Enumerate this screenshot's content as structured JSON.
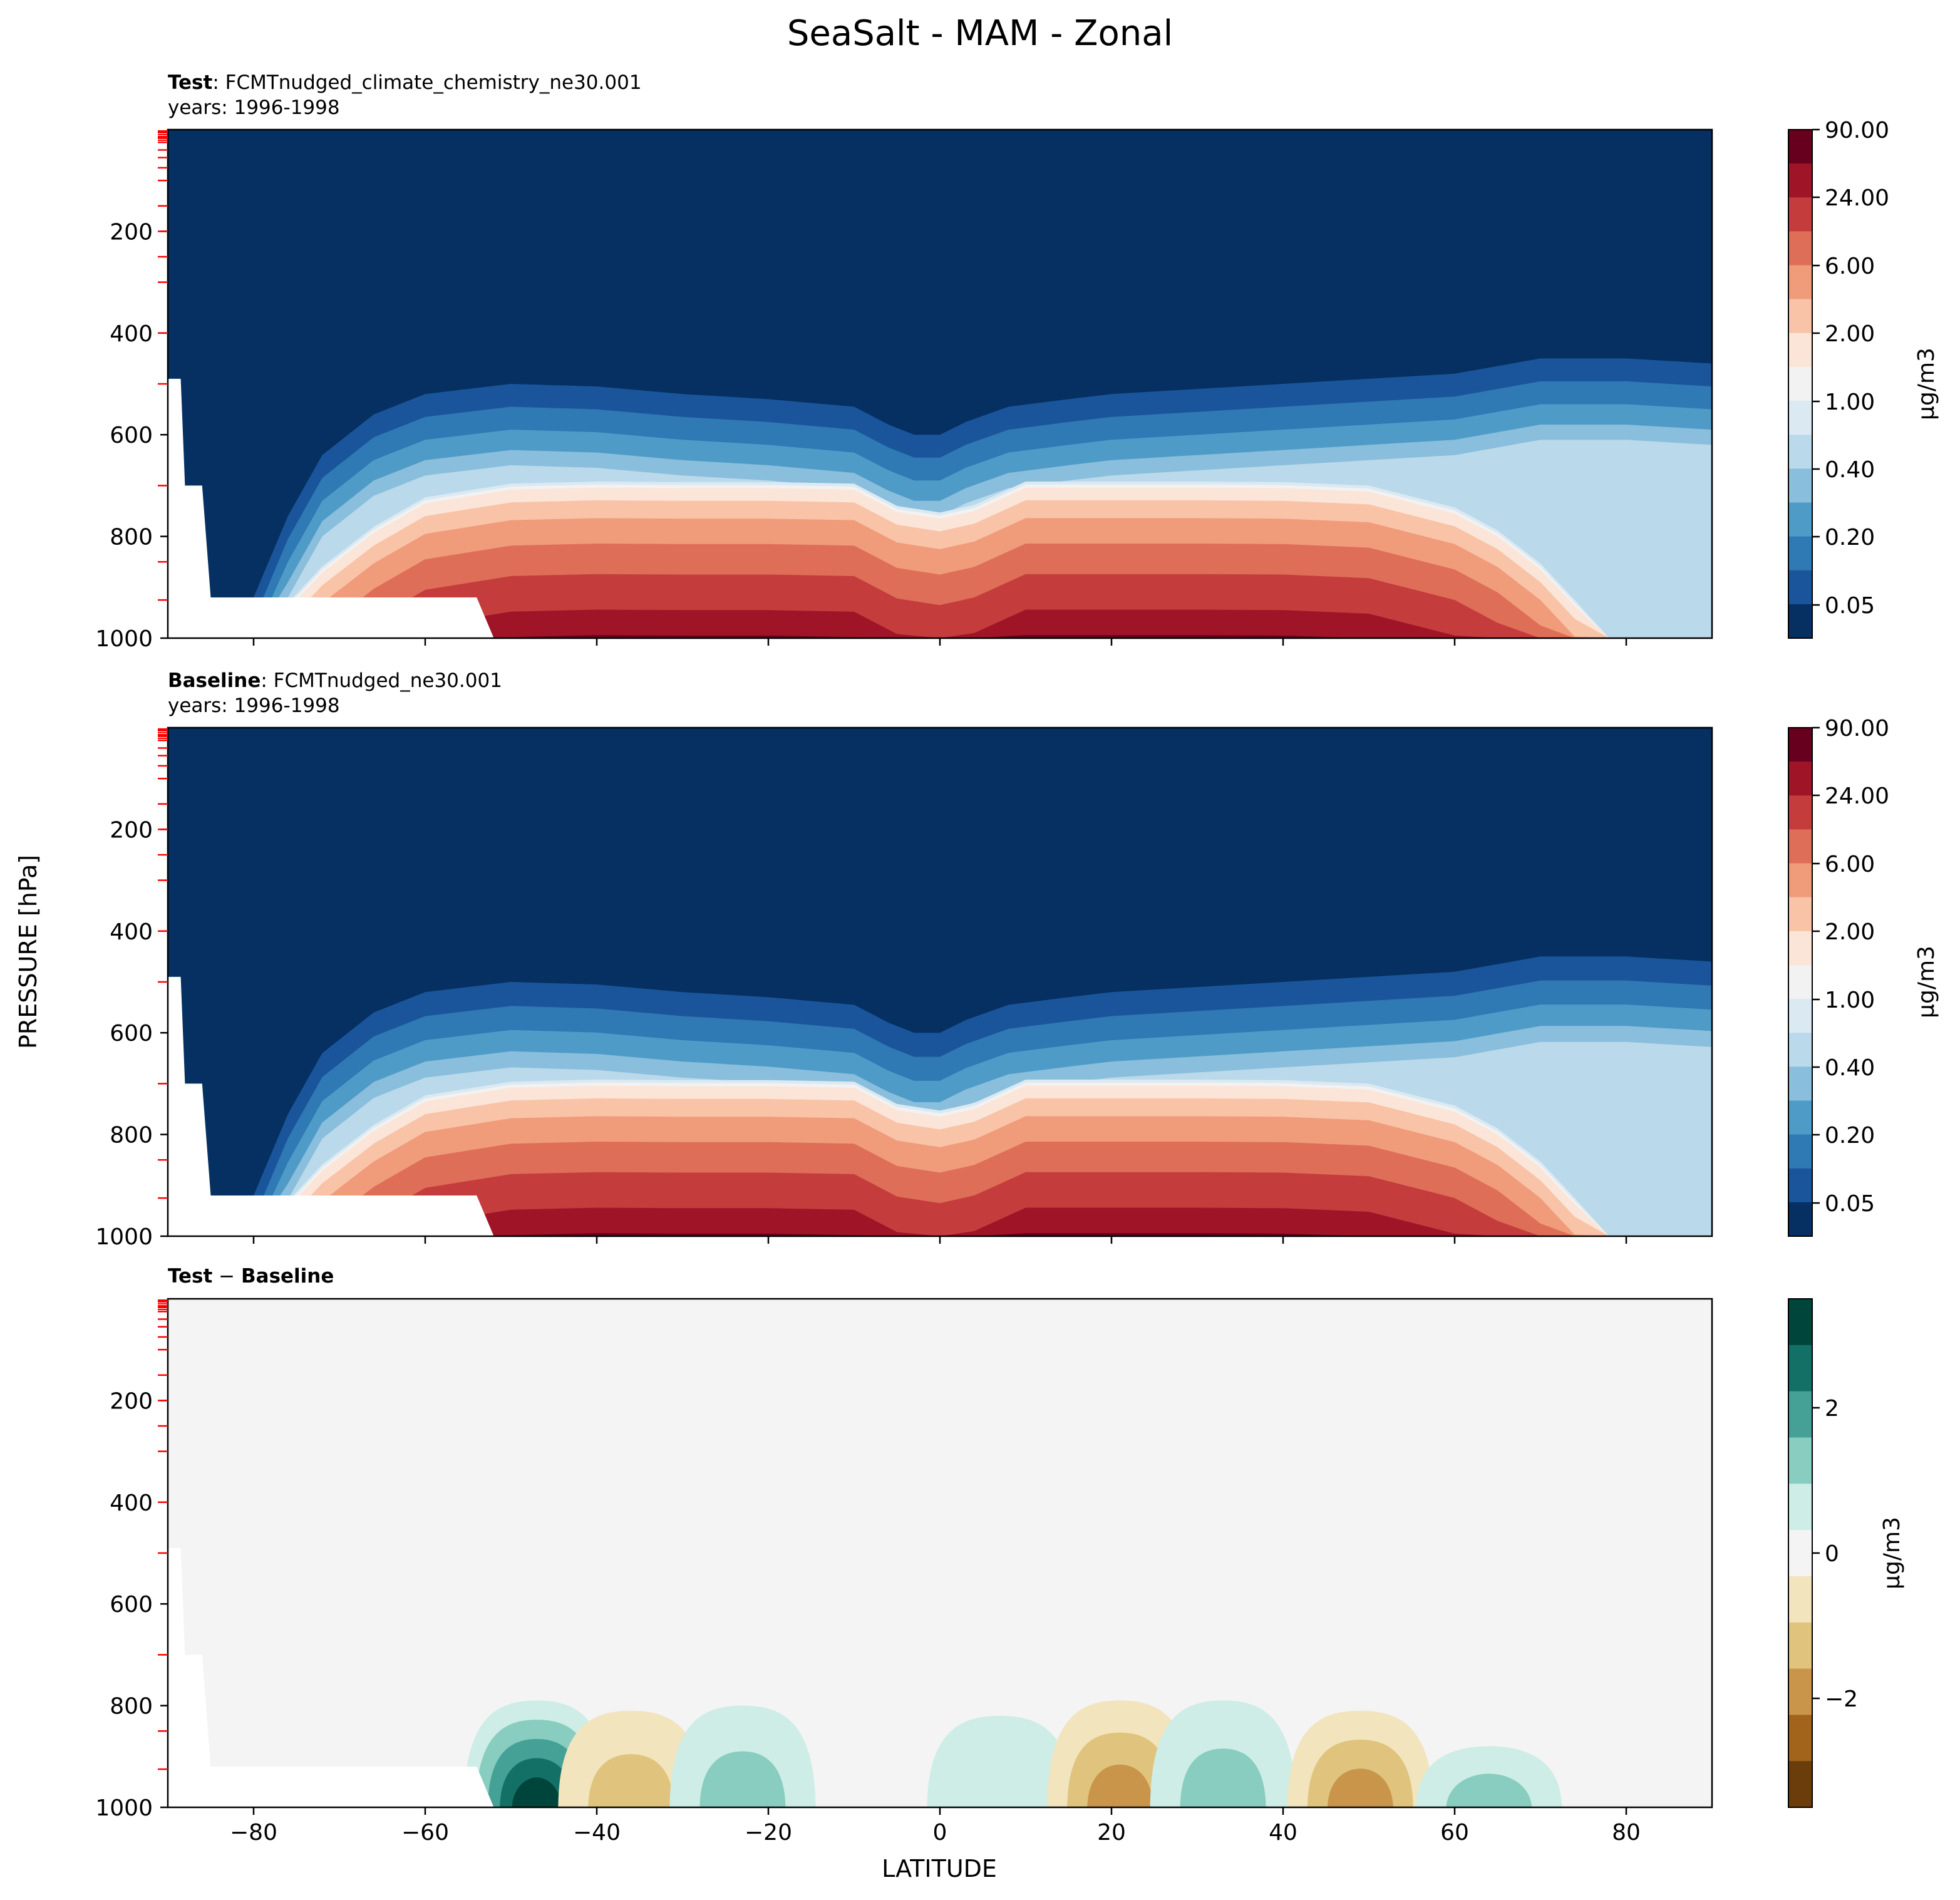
{
  "figure": {
    "title": "SeaSalt - MAM - Zonal",
    "ylabel": "PRESSURE [hPa]",
    "xlabel": "LATITUDE"
  },
  "chart_data": [
    {
      "type": "heatmap",
      "panel": "Test",
      "title_bold": "Test",
      "title_rest": ": FCMTnudged_climate_chemistry_ne30.001",
      "subtitle": "years: 1996-1998",
      "x_range": [
        -90,
        90
      ],
      "ylim": [
        1000,
        0
      ],
      "yticks": [
        200,
        400,
        600,
        800,
        1000
      ],
      "colorbar": {
        "label": "μg/m3",
        "tick_labels": [
          "90.00",
          "24.00",
          "6.00",
          "2.00",
          "1.00",
          "0.40",
          "0.20",
          "0.05"
        ],
        "levels": 15,
        "colormap": "RdBu_r"
      },
      "description_values": {
        "background_level": "< 0.05",
        "surface_max_band": "24.00-90.00 at 1000 hPa, lat -55 to 0 and 10 to 50"
      }
    },
    {
      "type": "heatmap",
      "panel": "Baseline",
      "title_bold": "Baseline",
      "title_rest": ": FCMTnudged_ne30.001",
      "subtitle": "years: 1996-1998",
      "x_range": [
        -90,
        90
      ],
      "ylim": [
        1000,
        0
      ],
      "yticks": [
        200,
        400,
        600,
        800,
        1000
      ],
      "colorbar": {
        "label": "μg/m3",
        "tick_labels": [
          "90.00",
          "24.00",
          "6.00",
          "2.00",
          "1.00",
          "0.40",
          "0.20",
          "0.05"
        ],
        "levels": 15,
        "colormap": "RdBu_r"
      }
    },
    {
      "type": "heatmap",
      "panel": "Difference",
      "title_bold_1": "Test",
      "title_mid": " − ",
      "title_bold_2": "Baseline",
      "x_range": [
        -90,
        90
      ],
      "xticks": [
        -80,
        -60,
        -40,
        -20,
        0,
        20,
        40,
        60,
        80
      ],
      "ylim": [
        1000,
        0
      ],
      "yticks": [
        200,
        400,
        600,
        800,
        1000
      ],
      "colorbar": {
        "label": "μg/m3",
        "tick_labels": [
          "2",
          "0",
          "−2"
        ],
        "tick_values": [
          2,
          0,
          -2
        ],
        "range": [
          -3.5,
          3.5
        ],
        "colormap": "BrBG"
      },
      "anomalies": [
        {
          "lat": -47,
          "p_top": 790,
          "value": 3.2,
          "sign": "positive"
        },
        {
          "lat": -36,
          "p_top": 810,
          "value": -0.8,
          "sign": "negative"
        },
        {
          "lat": -23,
          "p_top": 800,
          "value": 1.2,
          "sign": "positive"
        },
        {
          "lat": 7,
          "p_top": 820,
          "value": 0.4,
          "sign": "positive"
        },
        {
          "lat": 21,
          "p_top": 790,
          "value": -2.0,
          "sign": "negative"
        },
        {
          "lat": 33,
          "p_top": 790,
          "value": 0.8,
          "sign": "positive"
        },
        {
          "lat": 49,
          "p_top": 810,
          "value": -1.8,
          "sign": "negative"
        },
        {
          "lat": 64,
          "p_top": 880,
          "value": 0.8,
          "sign": "positive"
        }
      ]
    }
  ],
  "colors": {
    "rdbu": [
      "#67001f",
      "#a01428",
      "#c43c3c",
      "#de6e58",
      "#f09c7b",
      "#f9c3a7",
      "#fbe5d8",
      "#f2f2f2",
      "#dbe9f2",
      "#bad9ea",
      "#89bedc",
      "#4f9bc7",
      "#2f79b5",
      "#1a559b",
      "#053061"
    ],
    "brbg": [
      "#6a3d0a",
      "#a2631b",
      "#c9954a",
      "#e0c47e",
      "#f2e4bd",
      "#f4f4f4",
      "#cdede6",
      "#88cdbf",
      "#45a196",
      "#137066",
      "#00453b"
    ],
    "panel_bg": "#f3f4f3",
    "red_ticks": "#ff0000"
  }
}
